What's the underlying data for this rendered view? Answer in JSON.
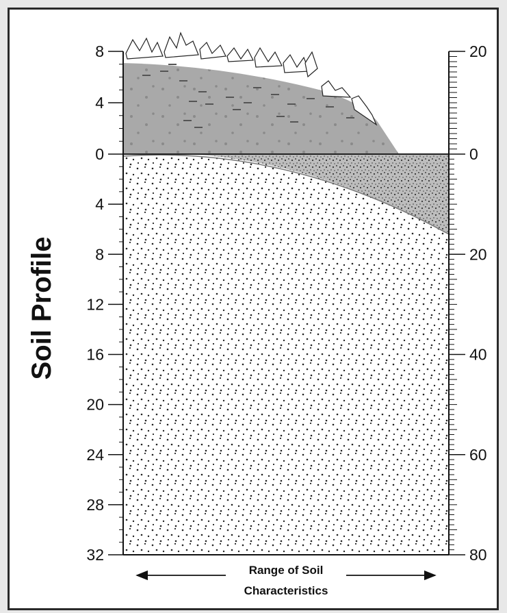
{
  "figure": {
    "side_title": "Soil Profile",
    "caption_line1": "Range of Soil",
    "caption_line2": "Characteristics"
  },
  "left_scale": {
    "above_ticks": [
      8,
      4,
      0
    ],
    "below_ticks": [
      4,
      8,
      12,
      16,
      20,
      24,
      28,
      32
    ]
  },
  "right_scale": {
    "above_ticks": [
      20,
      0
    ],
    "below_ticks": [
      20,
      40,
      60,
      80
    ]
  },
  "colors": {
    "frame_background": "#e8e8e8",
    "panel": "#ffffff",
    "ink": "#111111",
    "topsoil": "#a9a9a9",
    "subsoil": "#bdbdbd",
    "subsoil_stipple": "#444444",
    "parent_material_dots": "#222222"
  }
}
